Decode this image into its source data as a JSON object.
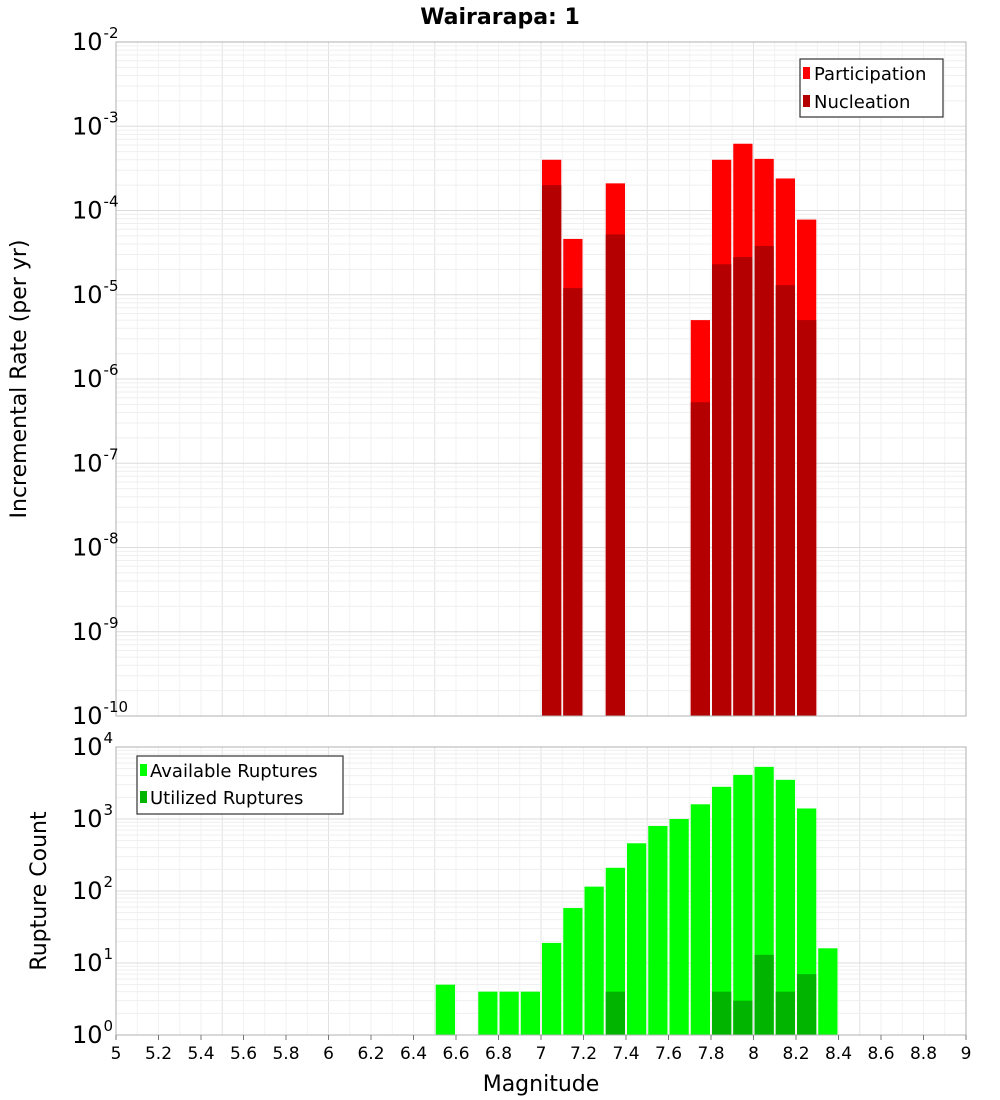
{
  "chart_data": [
    {
      "type": "bar",
      "title": "Wairarapa: 1",
      "xlabel": "Magnitude",
      "ylabel": "Incremental Rate (per yr)",
      "yscale": "log",
      "ylim_exponents": [
        -10,
        -2
      ],
      "xlim": [
        5,
        9
      ],
      "grid": true,
      "legend_position": "top-right",
      "x": [
        7.05,
        7.15,
        7.35,
        7.75,
        7.85,
        7.95,
        8.05,
        8.15,
        8.25
      ],
      "series": [
        {
          "name": "Participation",
          "color": "#ff0000",
          "values": [
            0.0004,
            4.6e-05,
            0.00021,
            5e-06,
            0.0004,
            0.00062,
            0.00041,
            0.00024,
            7.8e-05
          ]
        },
        {
          "name": "Nucleation",
          "color": "#b40000",
          "values": [
            0.0002,
            1.2e-05,
            5.2e-05,
            5.3e-07,
            2.3e-05,
            2.8e-05,
            3.8e-05,
            1.3e-05,
            5e-06
          ]
        }
      ]
    },
    {
      "type": "bar",
      "title": "",
      "xlabel": "Magnitude",
      "ylabel": "Rupture Count",
      "yscale": "log",
      "ylim_exponents": [
        0,
        4
      ],
      "xlim": [
        5,
        9
      ],
      "grid": true,
      "legend_position": "top-left",
      "x": [
        6.55,
        6.75,
        6.85,
        6.95,
        7.05,
        7.15,
        7.25,
        7.35,
        7.45,
        7.55,
        7.65,
        7.75,
        7.85,
        7.95,
        8.05,
        8.15,
        8.25,
        8.35
      ],
      "series": [
        {
          "name": "Available Ruptures",
          "color": "#00ff00",
          "values": [
            5,
            4,
            4,
            4,
            19,
            58,
            115,
            210,
            460,
            800,
            1000,
            1600,
            2800,
            4100,
            5300,
            3500,
            1400,
            16
          ]
        },
        {
          "name": "Utilized Ruptures",
          "color": "#00b400",
          "values": [
            0,
            0,
            0,
            0,
            1,
            1,
            0,
            4,
            0,
            0,
            0,
            1,
            4,
            3,
            13,
            4,
            7,
            0
          ]
        }
      ]
    }
  ],
  "x_ticks": [
    "5",
    "5.2",
    "5.4",
    "5.6",
    "5.8",
    "6",
    "6.2",
    "6.4",
    "6.6",
    "6.8",
    "7",
    "7.2",
    "7.4",
    "7.6",
    "7.8",
    "8",
    "8.2",
    "8.4",
    "8.6",
    "8.8",
    "9"
  ],
  "tick_base": "10"
}
